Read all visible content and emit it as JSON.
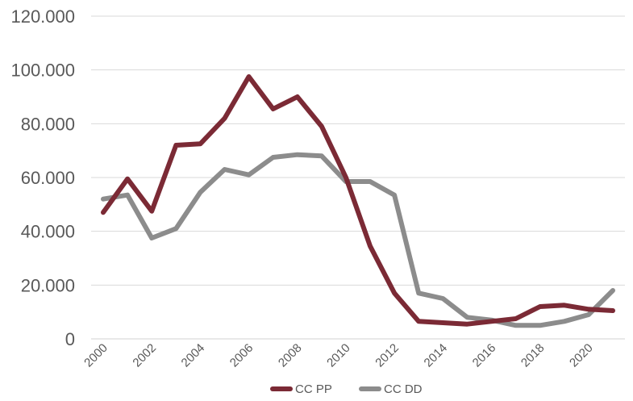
{
  "chart_data": {
    "type": "line",
    "x": [
      2000,
      2001,
      2002,
      2003,
      2004,
      2005,
      2006,
      2007,
      2008,
      2009,
      2010,
      2011,
      2012,
      2013,
      2014,
      2015,
      2016,
      2017,
      2018,
      2019,
      2020,
      2021
    ],
    "x_tick_labels": [
      "2000",
      "2002",
      "2004",
      "2006",
      "2008",
      "2010",
      "2012",
      "2014",
      "2016",
      "2018",
      "2020"
    ],
    "y_tick_labels": [
      "0",
      "20.000",
      "40.000",
      "60.000",
      "80.000",
      "100.000",
      "120.000"
    ],
    "ylim": [
      0,
      120000
    ],
    "grid": true,
    "legend_position": "bottom",
    "series": [
      {
        "name": "CC PP",
        "color": "#7B2A35",
        "values": [
          47000,
          59500,
          47500,
          72000,
          72500,
          82000,
          97500,
          85500,
          90000,
          79000,
          60000,
          34500,
          17000,
          6500,
          6000,
          5500,
          6500,
          7500,
          12000,
          12500,
          11000,
          10500
        ]
      },
      {
        "name": "CC DD",
        "color": "#8C8C8C",
        "values": [
          52000,
          53500,
          37500,
          41000,
          54500,
          63000,
          61000,
          67500,
          68500,
          68000,
          58500,
          58500,
          53500,
          17000,
          15000,
          8000,
          7000,
          5000,
          5000,
          6500,
          9000,
          18000
        ]
      }
    ]
  }
}
